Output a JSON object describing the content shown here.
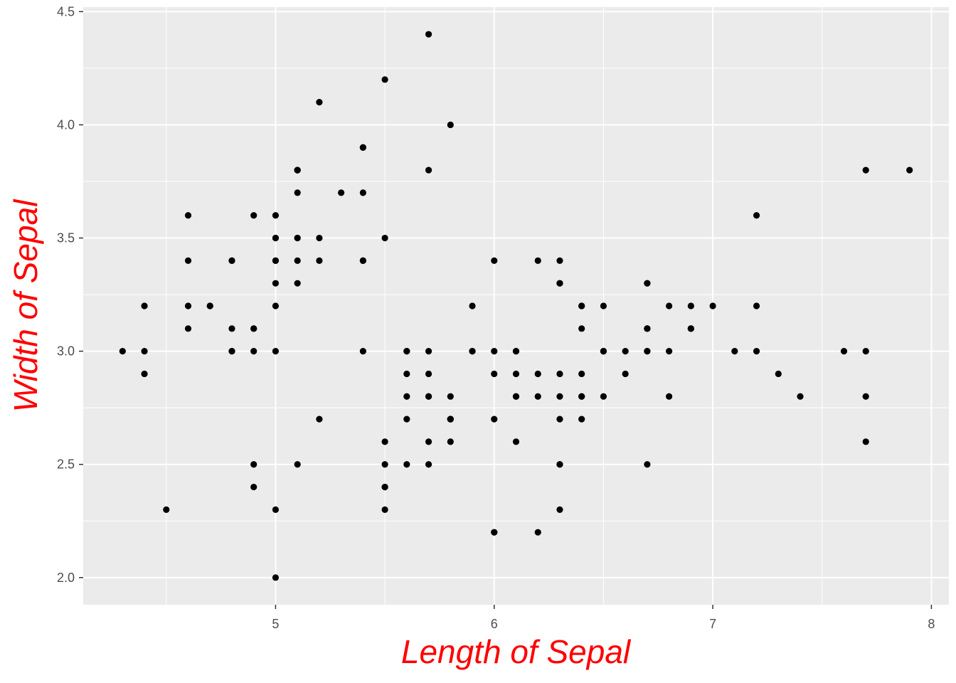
{
  "chart_data": {
    "type": "scatter",
    "title": "",
    "xlabel": "Length of Sepal",
    "ylabel": "Width of Sepal",
    "xlim": [
      4.12,
      8.08
    ],
    "ylim": [
      1.88,
      4.52
    ],
    "x_ticks": [
      5,
      6,
      7,
      8
    ],
    "x_tick_labels": [
      "5",
      "6",
      "7",
      "8"
    ],
    "y_ticks": [
      2.0,
      2.5,
      3.0,
      3.5,
      4.0,
      4.5
    ],
    "y_tick_labels": [
      "2.0",
      "2.5",
      "3.0",
      "3.5",
      "4.0",
      "4.5"
    ],
    "grid": true,
    "colors": {
      "panel": "#ebebeb",
      "grid": "#ffffff",
      "point": "#000000",
      "axis_title": "#ff0000",
      "tick_label": "#4d4d4d"
    },
    "points": [
      [
        5.1,
        3.5
      ],
      [
        4.9,
        3.0
      ],
      [
        4.7,
        3.2
      ],
      [
        4.6,
        3.1
      ],
      [
        5.0,
        3.6
      ],
      [
        5.4,
        3.9
      ],
      [
        4.6,
        3.4
      ],
      [
        5.0,
        3.4
      ],
      [
        4.4,
        2.9
      ],
      [
        4.9,
        3.1
      ],
      [
        5.4,
        3.7
      ],
      [
        4.8,
        3.4
      ],
      [
        4.8,
        3.0
      ],
      [
        4.3,
        3.0
      ],
      [
        5.8,
        4.0
      ],
      [
        5.7,
        4.4
      ],
      [
        5.4,
        3.9
      ],
      [
        5.1,
        3.5
      ],
      [
        5.7,
        3.8
      ],
      [
        5.1,
        3.8
      ],
      [
        5.4,
        3.4
      ],
      [
        5.1,
        3.7
      ],
      [
        4.6,
        3.6
      ],
      [
        5.1,
        3.3
      ],
      [
        4.8,
        3.4
      ],
      [
        5.0,
        3.0
      ],
      [
        5.0,
        3.4
      ],
      [
        5.2,
        3.5
      ],
      [
        5.2,
        3.4
      ],
      [
        4.7,
        3.2
      ],
      [
        4.8,
        3.1
      ],
      [
        5.4,
        3.4
      ],
      [
        5.2,
        4.1
      ],
      [
        5.5,
        4.2
      ],
      [
        4.9,
        3.1
      ],
      [
        5.0,
        3.2
      ],
      [
        5.5,
        3.5
      ],
      [
        4.9,
        3.6
      ],
      [
        4.4,
        3.0
      ],
      [
        5.1,
        3.4
      ],
      [
        5.0,
        3.5
      ],
      [
        4.5,
        2.3
      ],
      [
        4.4,
        3.2
      ],
      [
        5.0,
        3.5
      ],
      [
        5.1,
        3.8
      ],
      [
        4.8,
        3.0
      ],
      [
        5.1,
        3.8
      ],
      [
        4.6,
        3.2
      ],
      [
        5.3,
        3.7
      ],
      [
        5.0,
        3.3
      ],
      [
        7.0,
        3.2
      ],
      [
        6.4,
        3.2
      ],
      [
        6.9,
        3.1
      ],
      [
        5.5,
        2.3
      ],
      [
        6.5,
        2.8
      ],
      [
        5.7,
        2.8
      ],
      [
        6.3,
        3.3
      ],
      [
        4.9,
        2.4
      ],
      [
        6.6,
        2.9
      ],
      [
        5.2,
        2.7
      ],
      [
        5.0,
        2.0
      ],
      [
        5.9,
        3.0
      ],
      [
        6.0,
        2.2
      ],
      [
        6.1,
        2.9
      ],
      [
        5.6,
        2.9
      ],
      [
        6.7,
        3.1
      ],
      [
        5.6,
        3.0
      ],
      [
        5.8,
        2.7
      ],
      [
        6.2,
        2.2
      ],
      [
        5.6,
        2.5
      ],
      [
        5.9,
        3.2
      ],
      [
        6.1,
        2.8
      ],
      [
        6.3,
        2.5
      ],
      [
        6.1,
        2.8
      ],
      [
        6.4,
        2.9
      ],
      [
        6.6,
        3.0
      ],
      [
        6.8,
        2.8
      ],
      [
        6.7,
        3.0
      ],
      [
        6.0,
        2.9
      ],
      [
        5.7,
        2.6
      ],
      [
        5.5,
        2.4
      ],
      [
        5.5,
        2.4
      ],
      [
        5.8,
        2.7
      ],
      [
        6.0,
        2.7
      ],
      [
        5.4,
        3.0
      ],
      [
        6.0,
        3.4
      ],
      [
        6.7,
        3.1
      ],
      [
        6.3,
        2.3
      ],
      [
        5.6,
        3.0
      ],
      [
        5.5,
        2.5
      ],
      [
        5.5,
        2.6
      ],
      [
        6.1,
        3.0
      ],
      [
        5.8,
        2.6
      ],
      [
        5.0,
        2.3
      ],
      [
        5.6,
        2.7
      ],
      [
        5.7,
        3.0
      ],
      [
        5.7,
        2.9
      ],
      [
        6.2,
        2.9
      ],
      [
        5.1,
        2.5
      ],
      [
        5.7,
        2.8
      ],
      [
        6.3,
        3.3
      ],
      [
        5.8,
        2.7
      ],
      [
        7.1,
        3.0
      ],
      [
        6.3,
        2.9
      ],
      [
        6.5,
        3.0
      ],
      [
        7.6,
        3.0
      ],
      [
        4.9,
        2.5
      ],
      [
        7.3,
        2.9
      ],
      [
        6.7,
        2.5
      ],
      [
        7.2,
        3.6
      ],
      [
        6.5,
        3.2
      ],
      [
        6.4,
        2.7
      ],
      [
        6.8,
        3.0
      ],
      [
        5.7,
        2.5
      ],
      [
        5.8,
        2.8
      ],
      [
        6.4,
        3.2
      ],
      [
        6.5,
        3.0
      ],
      [
        7.7,
        3.8
      ],
      [
        7.7,
        2.6
      ],
      [
        6.0,
        2.2
      ],
      [
        6.9,
        3.2
      ],
      [
        5.6,
        2.8
      ],
      [
        7.7,
        2.8
      ],
      [
        6.3,
        2.7
      ],
      [
        6.7,
        3.3
      ],
      [
        7.2,
        3.2
      ],
      [
        6.2,
        2.8
      ],
      [
        6.1,
        3.0
      ],
      [
        6.4,
        2.8
      ],
      [
        7.2,
        3.0
      ],
      [
        7.4,
        2.8
      ],
      [
        7.9,
        3.8
      ],
      [
        6.4,
        2.8
      ],
      [
        6.3,
        2.8
      ],
      [
        6.1,
        2.6
      ],
      [
        7.7,
        3.0
      ],
      [
        6.3,
        3.4
      ],
      [
        6.4,
        3.1
      ],
      [
        6.0,
        3.0
      ],
      [
        6.9,
        3.1
      ],
      [
        6.7,
        3.1
      ],
      [
        6.9,
        3.1
      ],
      [
        5.8,
        2.7
      ],
      [
        6.8,
        3.2
      ],
      [
        6.7,
        3.3
      ],
      [
        6.7,
        3.0
      ],
      [
        6.3,
        2.5
      ],
      [
        6.5,
        3.0
      ],
      [
        6.2,
        3.4
      ],
      [
        5.9,
        3.0
      ]
    ]
  }
}
